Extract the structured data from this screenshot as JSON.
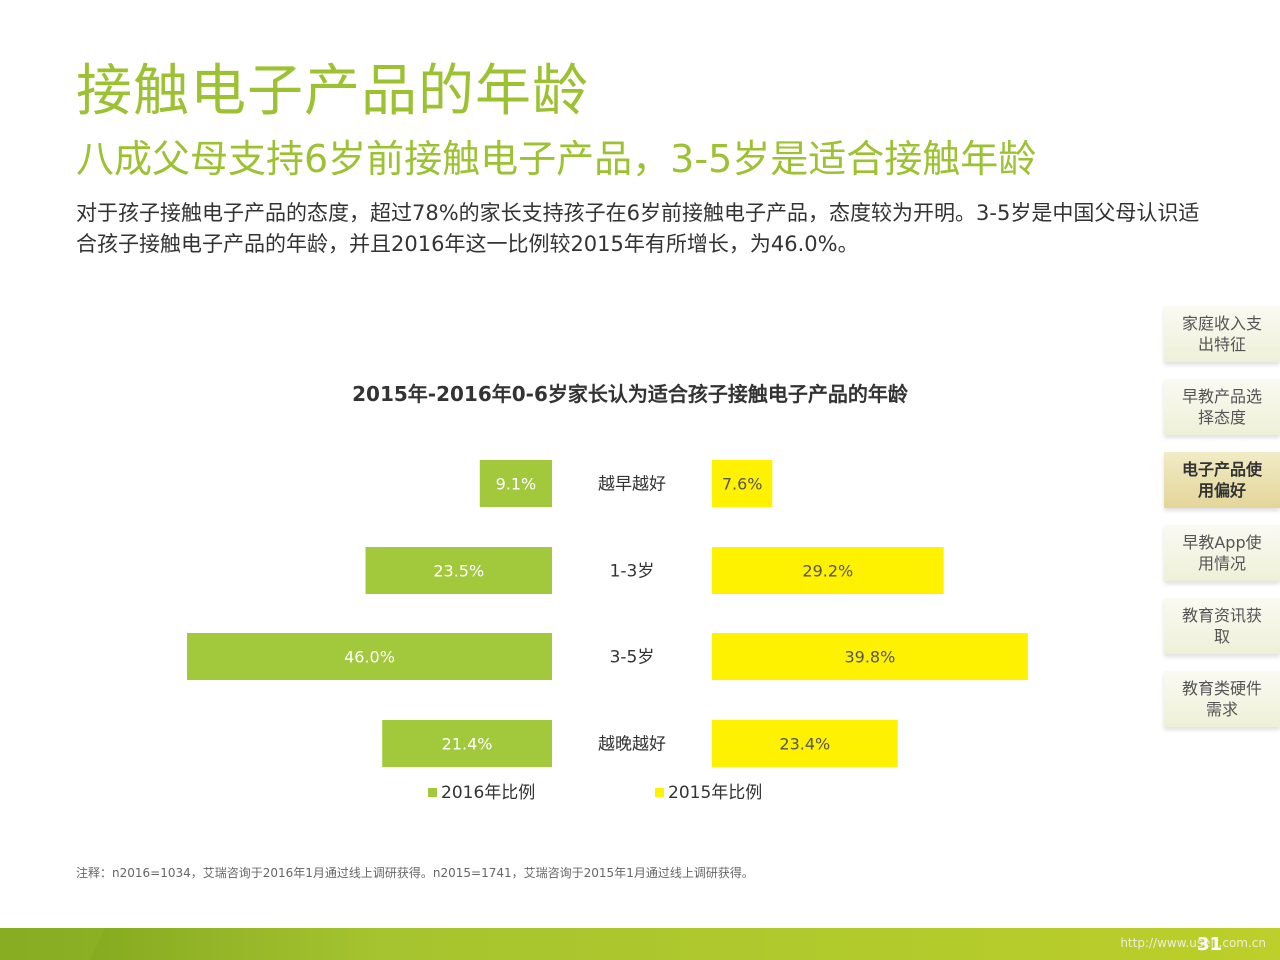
{
  "slide": {
    "title": "接触电子产品的年龄",
    "subtitle": "八成父母支持6岁前接触电子产品，3-5岁是适合接触年龄",
    "description": "对于孩子接触电子产品的态度，超过78%的家长支持孩子在6岁前接触电子产品，态度较为开明。3-5岁是中国父母认识适合孩子接触电子产品的年龄，并且2016年这一比例较2015年有所增长，为46.0%。",
    "note": "注释：n2016=1034，艾瑞咨询于2016年1月通过线上调研获得。n2015=1741，艾瑞咨询于2015年1月通过线上调研获得。",
    "page_number": "31",
    "watermark": "http://www.useit.com.cn"
  },
  "side_nav": {
    "items": [
      {
        "label": "家庭收入支出特征",
        "active": false
      },
      {
        "label": "早教产品选择态度",
        "active": false
      },
      {
        "label": "电子产品使用偏好",
        "active": true
      },
      {
        "label": "早教App使用情况",
        "active": false
      },
      {
        "label": "教育资讯获取",
        "active": false
      },
      {
        "label": "教育类硬件需求",
        "active": false
      }
    ]
  },
  "chart_data": {
    "type": "bar",
    "orientation": "horizontal-butterfly",
    "title": "2015年-2016年0-6岁家长认为适合孩子接触电子产品的年龄",
    "categories": [
      "越早越好",
      "1-3岁",
      "3-5岁",
      "越晚越好"
    ],
    "series": [
      {
        "name": "2016年比例",
        "values": [
          9.1,
          23.5,
          46.0,
          21.4
        ],
        "labels": [
          "9.1%",
          "23.5%",
          "46.0%",
          "21.4%"
        ],
        "color": "#a2c83b"
      },
      {
        "name": "2015年比例",
        "values": [
          7.6,
          29.2,
          39.8,
          23.4
        ],
        "labels": [
          "7.6%",
          "29.2%",
          "39.8%",
          "23.4%"
        ],
        "color": "#fff200"
      }
    ],
    "legend_position": "bottom",
    "grid": false
  }
}
